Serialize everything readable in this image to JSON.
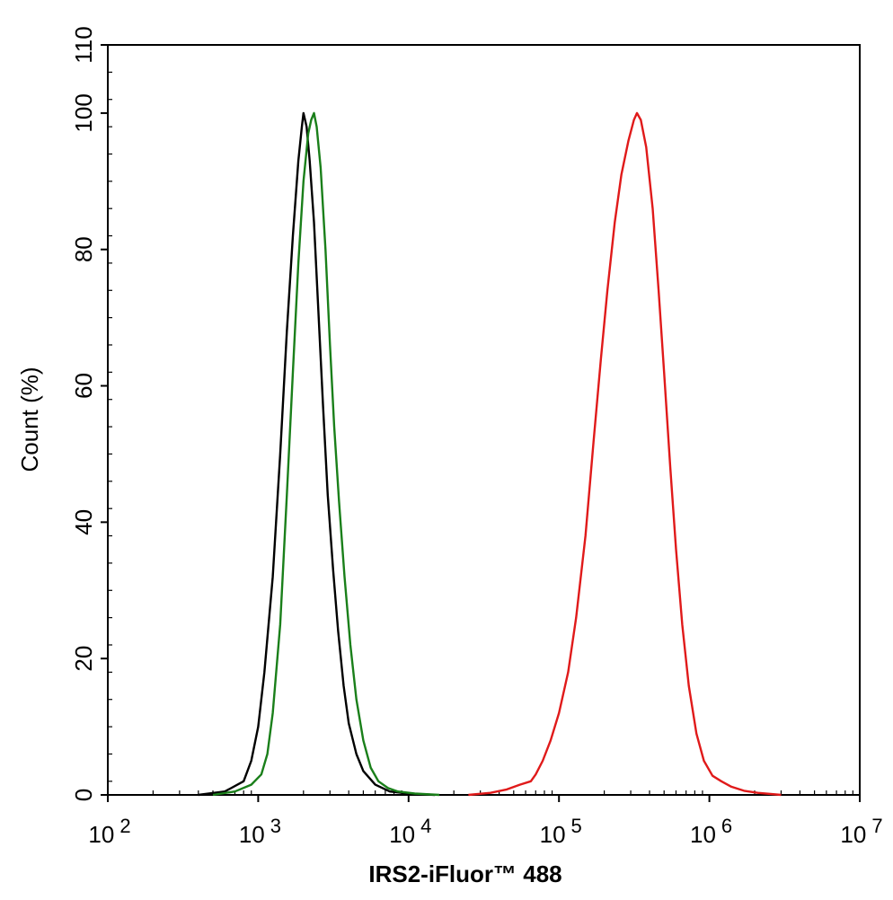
{
  "chart_data": {
    "type": "line",
    "xlabel": "IRS2-iFluor™ 488",
    "ylabel": "Count  (%)",
    "xscale": "log",
    "xlim": [
      100,
      10000000
    ],
    "ylim": [
      0,
      110
    ],
    "x_ticks": [
      {
        "base": "10",
        "exp": "2",
        "value": 100
      },
      {
        "base": "10",
        "exp": "3",
        "value": 1000
      },
      {
        "base": "10",
        "exp": "4",
        "value": 10000
      },
      {
        "base": "10",
        "exp": "5",
        "value": 100000
      },
      {
        "base": "10",
        "exp": "6",
        "value": 1000000
      },
      {
        "base": "10",
        "exp": "7",
        "value": 10000000
      }
    ],
    "y_ticks": [
      "0",
      "20",
      "40",
      "60",
      "80",
      "100",
      "110"
    ],
    "grid": false,
    "series": [
      {
        "color": "#000000",
        "points": [
          [
            400,
            0
          ],
          [
            600,
            0.5
          ],
          [
            800,
            2
          ],
          [
            900,
            5
          ],
          [
            1000,
            10
          ],
          [
            1100,
            18
          ],
          [
            1250,
            32
          ],
          [
            1400,
            50
          ],
          [
            1550,
            68
          ],
          [
            1700,
            82
          ],
          [
            1850,
            93
          ],
          [
            1950,
            98
          ],
          [
            2000,
            100
          ],
          [
            2100,
            98
          ],
          [
            2200,
            93
          ],
          [
            2350,
            84
          ],
          [
            2500,
            72
          ],
          [
            2700,
            57
          ],
          [
            2900,
            44
          ],
          [
            3150,
            33
          ],
          [
            3400,
            24
          ],
          [
            3700,
            16
          ],
          [
            4000,
            10.5
          ],
          [
            4500,
            6
          ],
          [
            5000,
            3.5
          ],
          [
            6000,
            1.5
          ],
          [
            7500,
            0.5
          ],
          [
            10000,
            0.2
          ],
          [
            15000,
            0
          ]
        ]
      },
      {
        "color": "#1a7f1a",
        "points": [
          [
            500,
            0
          ],
          [
            700,
            0.5
          ],
          [
            900,
            1.5
          ],
          [
            1050,
            3
          ],
          [
            1150,
            6
          ],
          [
            1250,
            12
          ],
          [
            1400,
            25
          ],
          [
            1550,
            44
          ],
          [
            1700,
            62
          ],
          [
            1850,
            78
          ],
          [
            2000,
            90
          ],
          [
            2150,
            97
          ],
          [
            2250,
            99
          ],
          [
            2350,
            100
          ],
          [
            2450,
            98
          ],
          [
            2600,
            92
          ],
          [
            2800,
            80
          ],
          [
            3000,
            66
          ],
          [
            3200,
            54
          ],
          [
            3450,
            43
          ],
          [
            3750,
            32
          ],
          [
            4100,
            22
          ],
          [
            4500,
            14
          ],
          [
            5000,
            8
          ],
          [
            5600,
            4
          ],
          [
            6300,
            2
          ],
          [
            7300,
            1
          ],
          [
            8500,
            0.5
          ],
          [
            11000,
            0.2
          ],
          [
            16000,
            0
          ]
        ]
      },
      {
        "color": "#e01a1a",
        "points": [
          [
            25000,
            0
          ],
          [
            35000,
            0.3
          ],
          [
            45000,
            0.8
          ],
          [
            55000,
            1.5
          ],
          [
            65000,
            2
          ],
          [
            70000,
            3
          ],
          [
            78000,
            5
          ],
          [
            88000,
            8
          ],
          [
            100000,
            12
          ],
          [
            115000,
            18
          ],
          [
            130000,
            26
          ],
          [
            150000,
            38
          ],
          [
            170000,
            52
          ],
          [
            190000,
            64
          ],
          [
            210000,
            74
          ],
          [
            235000,
            84
          ],
          [
            260000,
            91
          ],
          [
            290000,
            96
          ],
          [
            315000,
            99
          ],
          [
            330000,
            100
          ],
          [
            350000,
            99
          ],
          [
            380000,
            95
          ],
          [
            420000,
            86
          ],
          [
            460000,
            74
          ],
          [
            500000,
            62
          ],
          [
            550000,
            48
          ],
          [
            600000,
            36
          ],
          [
            660000,
            25
          ],
          [
            730000,
            16
          ],
          [
            820000,
            9
          ],
          [
            920000,
            5
          ],
          [
            1050000,
            2.8
          ],
          [
            1200000,
            2
          ],
          [
            1400000,
            1.2
          ],
          [
            1700000,
            0.6
          ],
          [
            2100000,
            0.3
          ],
          [
            3000000,
            0
          ]
        ]
      }
    ]
  }
}
